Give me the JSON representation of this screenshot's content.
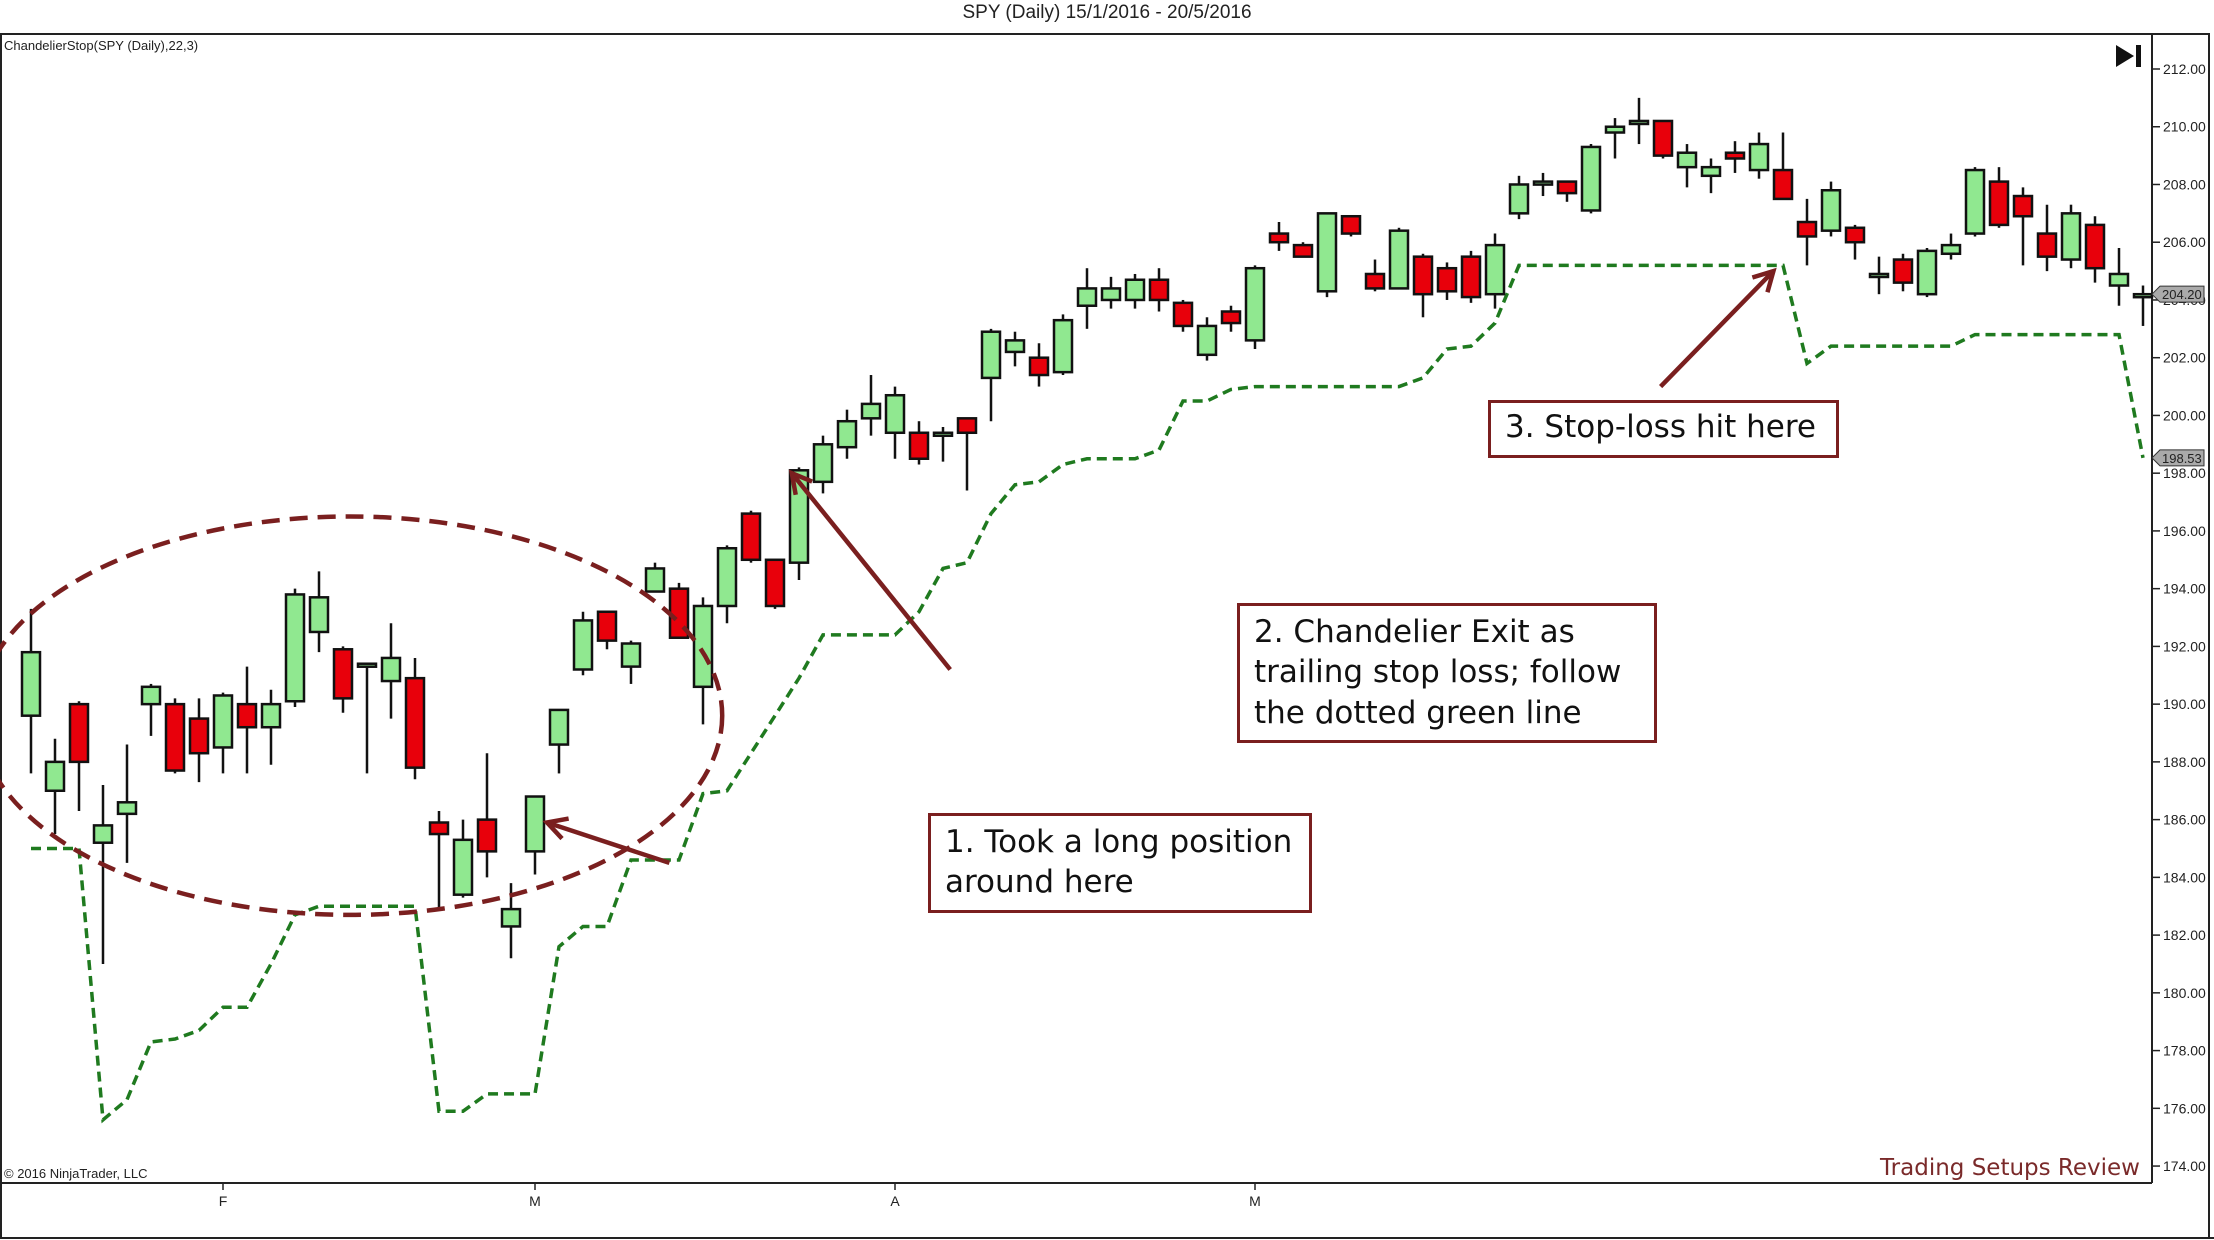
{
  "header": {
    "title": "SPY (Daily)  15/1/2016 - 20/5/2016",
    "indicator_label": "ChandelierStop(SPY (Daily),22,3)",
    "copyright": "© 2016 NinjaTrader, LLC",
    "watermark": "Trading Setups Review",
    "goto_end_icon": "skip-to-end-icon"
  },
  "annotations": [
    {
      "text": "1. Took a long position around here"
    },
    {
      "text": "2. Chandelier Exit as trailing stop loss; follow the dotted green line"
    },
    {
      "text": "3. Stop-loss hit here"
    }
  ],
  "colors": {
    "up": "#90e890",
    "down": "#e8000b",
    "stop_line": "#1f7a1f",
    "annotation": "#7a1f1f"
  },
  "chart_data": {
    "type": "candlestick",
    "title": "SPY (Daily)  15/1/2016 - 20/5/2016",
    "indicator": "ChandelierStop(SPY (Daily),22,3)",
    "xlabel": "",
    "ylabel": "",
    "ylim": [
      174,
      212
    ],
    "yticks": [
      174,
      176,
      178,
      180,
      182,
      184,
      186,
      188,
      190,
      192,
      194,
      196,
      198,
      200,
      202,
      204,
      206,
      208,
      210,
      212
    ],
    "xticks": [
      {
        "label": "F",
        "index": 8
      },
      {
        "label": "M",
        "index": 21
      },
      {
        "label": "A",
        "index": 36
      },
      {
        "label": "M",
        "index": 51
      }
    ],
    "price_markers": [
      {
        "value": "204.20",
        "series": "SPY"
      },
      {
        "value": "198.53",
        "series": "ChandelierStop"
      }
    ],
    "grid": false,
    "candles": [
      {
        "o": 189.6,
        "h": 193.3,
        "l": 187.6,
        "c": 191.8
      },
      {
        "o": 187.0,
        "h": 188.8,
        "l": 185.5,
        "c": 188.0
      },
      {
        "o": 190.0,
        "h": 190.1,
        "l": 186.3,
        "c": 188.0
      },
      {
        "o": 185.2,
        "h": 187.2,
        "l": 181.0,
        "c": 185.8
      },
      {
        "o": 186.2,
        "h": 188.6,
        "l": 184.5,
        "c": 186.6
      },
      {
        "o": 190.0,
        "h": 190.7,
        "l": 188.9,
        "c": 190.6
      },
      {
        "o": 190.0,
        "h": 190.2,
        "l": 187.6,
        "c": 187.7
      },
      {
        "o": 189.5,
        "h": 190.2,
        "l": 187.3,
        "c": 188.3
      },
      {
        "o": 188.5,
        "h": 190.4,
        "l": 187.6,
        "c": 190.3
      },
      {
        "o": 190.0,
        "h": 191.3,
        "l": 187.6,
        "c": 189.2
      },
      {
        "o": 189.2,
        "h": 190.5,
        "l": 187.9,
        "c": 190.0
      },
      {
        "o": 190.1,
        "h": 194.0,
        "l": 189.9,
        "c": 193.8
      },
      {
        "o": 192.5,
        "h": 194.6,
        "l": 191.8,
        "c": 193.7
      },
      {
        "o": 191.9,
        "h": 192.0,
        "l": 189.7,
        "c": 190.2
      },
      {
        "o": 191.4,
        "h": 191.4,
        "l": 187.6,
        "c": 191.4
      },
      {
        "o": 190.8,
        "h": 192.8,
        "l": 189.5,
        "c": 191.6
      },
      {
        "o": 190.9,
        "h": 191.6,
        "l": 187.4,
        "c": 187.8
      },
      {
        "o": 185.9,
        "h": 186.3,
        "l": 182.9,
        "c": 185.5
      },
      {
        "o": 183.4,
        "h": 186.0,
        "l": 183.3,
        "c": 185.3
      },
      {
        "o": 186.0,
        "h": 188.3,
        "l": 184.0,
        "c": 184.9
      },
      {
        "o": 182.3,
        "h": 183.8,
        "l": 181.2,
        "c": 182.9
      },
      {
        "o": 184.9,
        "h": 186.7,
        "l": 184.1,
        "c": 186.8
      },
      {
        "o": 188.6,
        "h": 189.5,
        "l": 187.6,
        "c": 189.8
      },
      {
        "o": 191.2,
        "h": 193.2,
        "l": 191.0,
        "c": 192.9
      },
      {
        "o": 193.2,
        "h": 193.2,
        "l": 191.9,
        "c": 192.2
      },
      {
        "o": 191.3,
        "h": 192.2,
        "l": 190.7,
        "c": 192.1
      },
      {
        "o": 193.9,
        "h": 194.9,
        "l": 193.9,
        "c": 194.7
      },
      {
        "o": 194.0,
        "h": 194.2,
        "l": 192.3,
        "c": 192.3
      },
      {
        "o": 190.6,
        "h": 193.7,
        "l": 189.3,
        "c": 193.4
      },
      {
        "o": 193.4,
        "h": 195.5,
        "l": 192.8,
        "c": 195.4
      },
      {
        "o": 196.6,
        "h": 196.7,
        "l": 194.9,
        "c": 195.0
      },
      {
        "o": 195.0,
        "h": 195.0,
        "l": 193.3,
        "c": 193.4
      },
      {
        "o": 194.9,
        "h": 198.2,
        "l": 194.3,
        "c": 198.1
      },
      {
        "o": 197.7,
        "h": 199.3,
        "l": 197.3,
        "c": 199.0
      },
      {
        "o": 198.9,
        "h": 200.2,
        "l": 198.5,
        "c": 199.8
      },
      {
        "o": 199.9,
        "h": 201.4,
        "l": 199.3,
        "c": 200.4
      },
      {
        "o": 199.4,
        "h": 201.0,
        "l": 198.5,
        "c": 200.7
      },
      {
        "o": 199.4,
        "h": 199.8,
        "l": 198.3,
        "c": 198.5
      },
      {
        "o": 199.4,
        "h": 199.6,
        "l": 198.4,
        "c": 199.4
      },
      {
        "o": 199.9,
        "h": 199.9,
        "l": 197.4,
        "c": 199.4
      },
      {
        "o": 201.3,
        "h": 203.0,
        "l": 199.8,
        "c": 202.9
      },
      {
        "o": 202.2,
        "h": 202.9,
        "l": 201.7,
        "c": 202.6
      },
      {
        "o": 202.0,
        "h": 202.5,
        "l": 201.0,
        "c": 201.4
      },
      {
        "o": 201.5,
        "h": 203.5,
        "l": 201.4,
        "c": 203.3
      },
      {
        "o": 203.8,
        "h": 205.1,
        "l": 203.0,
        "c": 204.4
      },
      {
        "o": 204.0,
        "h": 204.8,
        "l": 203.7,
        "c": 204.4
      },
      {
        "o": 204.0,
        "h": 204.9,
        "l": 203.7,
        "c": 204.7
      },
      {
        "o": 204.7,
        "h": 205.1,
        "l": 203.6,
        "c": 204.0
      },
      {
        "o": 203.9,
        "h": 204.0,
        "l": 202.9,
        "c": 203.1
      },
      {
        "o": 202.1,
        "h": 203.4,
        "l": 201.9,
        "c": 203.1
      },
      {
        "o": 203.6,
        "h": 203.8,
        "l": 202.9,
        "c": 203.2
      },
      {
        "o": 202.6,
        "h": 205.2,
        "l": 202.3,
        "c": 205.1
      },
      {
        "o": 206.3,
        "h": 206.7,
        "l": 205.7,
        "c": 206.0
      },
      {
        "o": 205.9,
        "h": 206.0,
        "l": 205.5,
        "c": 205.5
      },
      {
        "o": 204.3,
        "h": 207.0,
        "l": 204.1,
        "c": 207.0
      },
      {
        "o": 206.9,
        "h": 206.9,
        "l": 206.2,
        "c": 206.3
      },
      {
        "o": 204.9,
        "h": 205.4,
        "l": 204.3,
        "c": 204.4
      },
      {
        "o": 204.4,
        "h": 206.5,
        "l": 204.4,
        "c": 206.4
      },
      {
        "o": 205.5,
        "h": 205.6,
        "l": 203.4,
        "c": 204.2
      },
      {
        "o": 205.1,
        "h": 205.3,
        "l": 204.0,
        "c": 204.3
      },
      {
        "o": 205.5,
        "h": 205.7,
        "l": 203.9,
        "c": 204.1
      },
      {
        "o": 204.2,
        "h": 206.3,
        "l": 203.7,
        "c": 205.9
      },
      {
        "o": 207.0,
        "h": 208.3,
        "l": 206.8,
        "c": 208.0
      },
      {
        "o": 208.1,
        "h": 208.4,
        "l": 207.6,
        "c": 208.1
      },
      {
        "o": 208.1,
        "h": 208.1,
        "l": 207.4,
        "c": 207.7
      },
      {
        "o": 207.1,
        "h": 209.4,
        "l": 207.0,
        "c": 209.3
      },
      {
        "o": 209.8,
        "h": 210.3,
        "l": 208.9,
        "c": 210.0
      },
      {
        "o": 210.1,
        "h": 211.0,
        "l": 209.4,
        "c": 210.2
      },
      {
        "o": 210.2,
        "h": 210.2,
        "l": 208.9,
        "c": 209.0
      },
      {
        "o": 208.6,
        "h": 209.4,
        "l": 207.9,
        "c": 209.1
      },
      {
        "o": 208.3,
        "h": 208.9,
        "l": 207.7,
        "c": 208.6
      },
      {
        "o": 209.1,
        "h": 209.5,
        "l": 208.4,
        "c": 208.9
      },
      {
        "o": 208.5,
        "h": 209.8,
        "l": 208.2,
        "c": 209.4
      },
      {
        "o": 208.5,
        "h": 209.8,
        "l": 207.9,
        "c": 207.5
      },
      {
        "o": 206.7,
        "h": 207.5,
        "l": 205.2,
        "c": 206.2
      },
      {
        "o": 206.4,
        "h": 208.1,
        "l": 206.2,
        "c": 207.8
      },
      {
        "o": 206.5,
        "h": 206.6,
        "l": 205.4,
        "c": 206.0
      },
      {
        "o": 204.9,
        "h": 205.5,
        "l": 204.2,
        "c": 204.9
      },
      {
        "o": 205.4,
        "h": 205.6,
        "l": 204.3,
        "c": 204.6
      },
      {
        "o": 204.2,
        "h": 205.8,
        "l": 204.1,
        "c": 205.7
      },
      {
        "o": 205.6,
        "h": 206.3,
        "l": 205.4,
        "c": 205.9
      },
      {
        "o": 206.3,
        "h": 208.6,
        "l": 206.2,
        "c": 208.5
      },
      {
        "o": 208.1,
        "h": 208.6,
        "l": 206.5,
        "c": 206.6
      },
      {
        "o": 207.6,
        "h": 207.9,
        "l": 205.2,
        "c": 206.9
      },
      {
        "o": 206.3,
        "h": 207.3,
        "l": 205.0,
        "c": 205.5
      },
      {
        "o": 205.4,
        "h": 207.3,
        "l": 205.1,
        "c": 207.0
      },
      {
        "o": 206.6,
        "h": 206.9,
        "l": 204.6,
        "c": 205.1
      },
      {
        "o": 204.5,
        "h": 205.8,
        "l": 203.8,
        "c": 204.9
      },
      {
        "o": 204.2,
        "h": 204.5,
        "l": 203.1,
        "c": 204.2
      }
    ],
    "stop_line": [
      [
        0,
        185.0
      ],
      [
        1,
        185.0
      ],
      [
        2,
        185.0
      ],
      [
        3,
        175.6
      ],
      [
        4,
        176.3
      ],
      [
        5,
        178.3
      ],
      [
        6,
        178.4
      ],
      [
        7,
        178.7
      ],
      [
        8,
        179.5
      ],
      [
        9,
        179.5
      ],
      [
        10,
        181.0
      ],
      [
        11,
        182.7
      ],
      [
        12,
        183.0
      ],
      [
        13,
        183.0
      ],
      [
        14,
        183.0
      ],
      [
        15,
        183.0
      ],
      [
        16,
        183.0
      ],
      [
        17,
        175.9
      ],
      [
        18,
        175.9
      ],
      [
        19,
        176.5
      ],
      [
        20,
        176.5
      ],
      [
        21,
        176.5
      ],
      [
        22,
        181.6
      ],
      [
        23,
        182.3
      ],
      [
        24,
        182.3
      ],
      [
        25,
        184.6
      ],
      [
        26,
        184.6
      ],
      [
        27,
        184.6
      ],
      [
        28,
        186.9
      ],
      [
        29,
        187.0
      ],
      [
        30,
        188.3
      ],
      [
        31,
        189.6
      ],
      [
        32,
        190.9
      ],
      [
        33,
        192.4
      ],
      [
        34,
        192.4
      ],
      [
        35,
        192.4
      ],
      [
        36,
        192.4
      ],
      [
        37,
        193.2
      ],
      [
        38,
        194.7
      ],
      [
        39,
        194.9
      ],
      [
        40,
        196.6
      ],
      [
        41,
        197.6
      ],
      [
        42,
        197.7
      ],
      [
        43,
        198.3
      ],
      [
        44,
        198.5
      ],
      [
        45,
        198.5
      ],
      [
        46,
        198.5
      ],
      [
        47,
        198.8
      ],
      [
        48,
        200.5
      ],
      [
        49,
        200.5
      ],
      [
        50,
        200.9
      ],
      [
        51,
        201.0
      ],
      [
        52,
        201.0
      ],
      [
        53,
        201.0
      ],
      [
        54,
        201.0
      ],
      [
        55,
        201.0
      ],
      [
        56,
        201.0
      ],
      [
        57,
        201.0
      ],
      [
        58,
        201.3
      ],
      [
        59,
        202.3
      ],
      [
        60,
        202.4
      ],
      [
        61,
        203.2
      ],
      [
        62,
        205.2
      ],
      [
        63,
        205.2
      ],
      [
        64,
        205.2
      ],
      [
        65,
        205.2
      ],
      [
        66,
        205.2
      ],
      [
        67,
        205.2
      ],
      [
        68,
        205.2
      ],
      [
        69,
        205.2
      ],
      [
        70,
        205.2
      ],
      [
        71,
        205.2
      ],
      [
        72,
        205.2
      ],
      [
        73,
        205.2
      ],
      [
        74,
        201.8
      ],
      [
        75,
        202.4
      ],
      [
        76,
        202.4
      ],
      [
        77,
        202.4
      ],
      [
        78,
        202.4
      ],
      [
        79,
        202.4
      ],
      [
        80,
        202.4
      ],
      [
        81,
        202.8
      ],
      [
        82,
        202.8
      ],
      [
        83,
        202.8
      ],
      [
        84,
        202.8
      ],
      [
        85,
        202.8
      ],
      [
        86,
        202.8
      ],
      [
        87,
        202.8
      ],
      [
        88,
        198.53
      ]
    ],
    "ellipse": {
      "cx_index": 13.3,
      "cy": 189.6,
      "rx_index": 15.5,
      "ry": 6.9
    },
    "annotation_arrows": [
      {
        "from_index": 26.6,
        "from_price": 184.5,
        "to_index": 21.5,
        "to_price": 185.9
      },
      {
        "from_index": 38.3,
        "from_price": 191.2,
        "to_index": 31.7,
        "to_price": 198.0
      },
      {
        "from_index": 67.9,
        "from_price": 201.0,
        "to_index": 72.6,
        "to_price": 205.0
      }
    ]
  }
}
